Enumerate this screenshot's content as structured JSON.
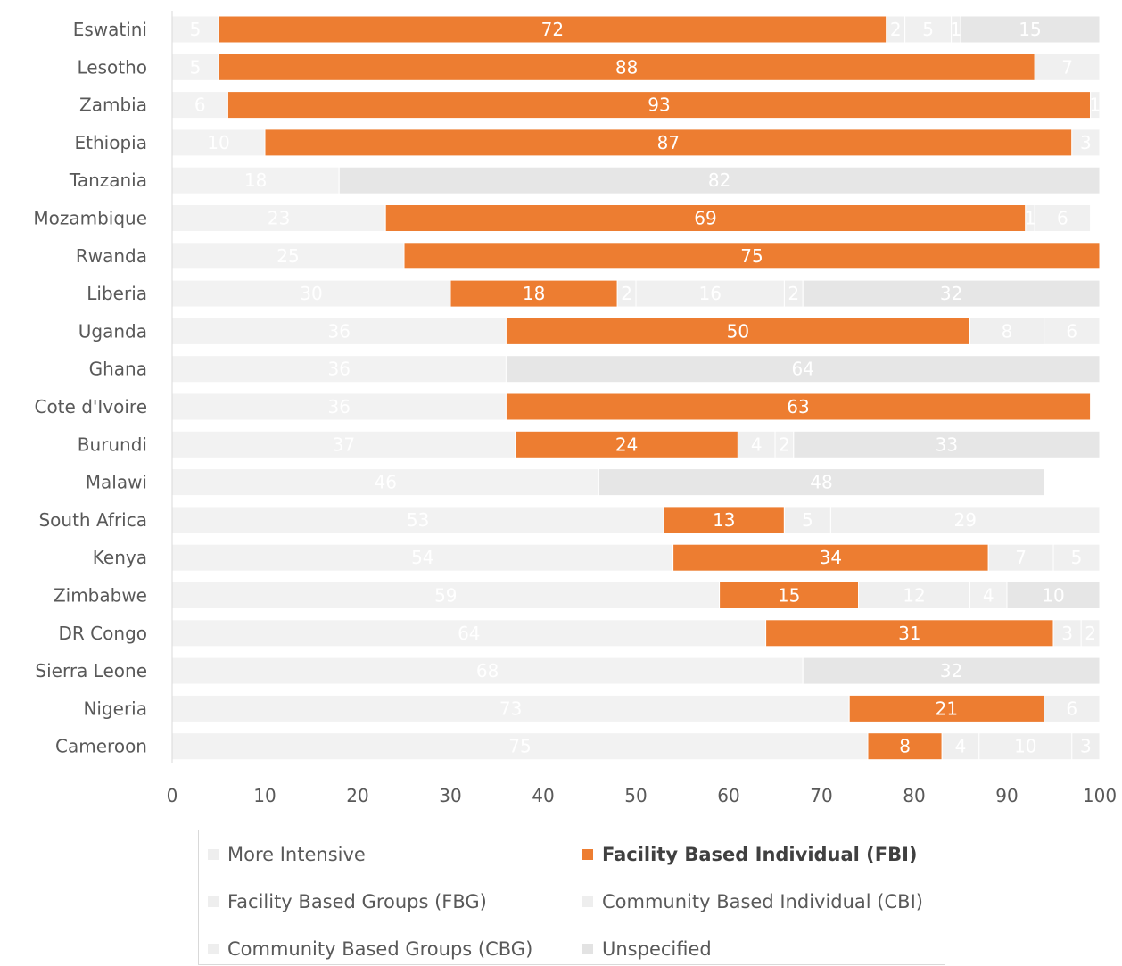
{
  "chart_data": {
    "type": "bar",
    "orientation": "horizontal",
    "stacked": true,
    "title": "",
    "xlabel": "",
    "ylabel": "",
    "xlim": [
      0,
      100
    ],
    "x_ticks": [
      "0",
      "10",
      "20",
      "30",
      "40",
      "50",
      "60",
      "70",
      "80",
      "90",
      "100"
    ],
    "grid": false,
    "legend_position": "bottom",
    "categories": [
      "Eswatini",
      "Lesotho",
      "Zambia",
      "Ethiopia",
      "Tanzania",
      "Mozambique",
      "Rwanda",
      "Liberia",
      "Uganda",
      "Ghana",
      "Cote d'Ivoire",
      "Burundi",
      "Malawi",
      "South Africa",
      "Kenya",
      "Zimbabwe",
      "DR Congo",
      "Sierra Leone",
      "Nigeria",
      "Cameroon"
    ],
    "series": [
      {
        "name": "More Intensive",
        "color": "#f2f2f2",
        "label_color": "#ffffff",
        "values": [
          5,
          5,
          6,
          10,
          18,
          23,
          25,
          30,
          36,
          36,
          36,
          37,
          46,
          53,
          54,
          59,
          64,
          68,
          73,
          75
        ]
      },
      {
        "name": "Facility Based Individual (FBI)",
        "color": "#ed7d31",
        "label_color": "#ffffff",
        "values": [
          72,
          88,
          93,
          87,
          0,
          69,
          75,
          18,
          50,
          0,
          63,
          24,
          0,
          13,
          34,
          15,
          31,
          0,
          21,
          8
        ]
      },
      {
        "name": "Facility Based Groups (FBG)",
        "color": "#efefef",
        "label_color": "#ffffff",
        "values": [
          2,
          0,
          0,
          0,
          0,
          1,
          0,
          2,
          8,
          0,
          0,
          4,
          0,
          5,
          7,
          12,
          3,
          0,
          6,
          4
        ]
      },
      {
        "name": "Community Based Individual (CBI)",
        "color": "#f0f0f0",
        "label_color": "#ffffff",
        "values": [
          5,
          7,
          1,
          3,
          0,
          6,
          0,
          16,
          6,
          0,
          0,
          2,
          0,
          29,
          5,
          4,
          2,
          0,
          0,
          10
        ]
      },
      {
        "name": "Community Based Groups (CBG)",
        "color": "#eeeeee",
        "label_color": "#ffffff",
        "values": [
          1,
          0,
          0,
          0,
          0,
          0,
          0,
          2,
          0,
          0,
          0,
          0,
          0,
          0,
          0,
          0,
          0,
          0,
          0,
          3
        ]
      },
      {
        "name": "Unspecified",
        "color": "#e6e6e6",
        "label_color": "#ffffff",
        "values": [
          15,
          0,
          0,
          0,
          82,
          0,
          0,
          32,
          0,
          64,
          0,
          33,
          48,
          0,
          0,
          10,
          0,
          32,
          0,
          0
        ]
      }
    ]
  },
  "legend": {
    "items": [
      {
        "label": "More Intensive",
        "color": "#eeeeee"
      },
      {
        "label": "Facility Based Individual (FBI)",
        "color": "#ed7d31"
      },
      {
        "label": "Facility Based Groups (FBG)",
        "color": "#eeeeee"
      },
      {
        "label": "Community Based Individual (CBI)",
        "color": "#eeeeee"
      },
      {
        "label": "Community Based Groups (CBG)",
        "color": "#eeeeee"
      },
      {
        "label": "Unspecified",
        "color": "#e3e3e3"
      }
    ]
  }
}
